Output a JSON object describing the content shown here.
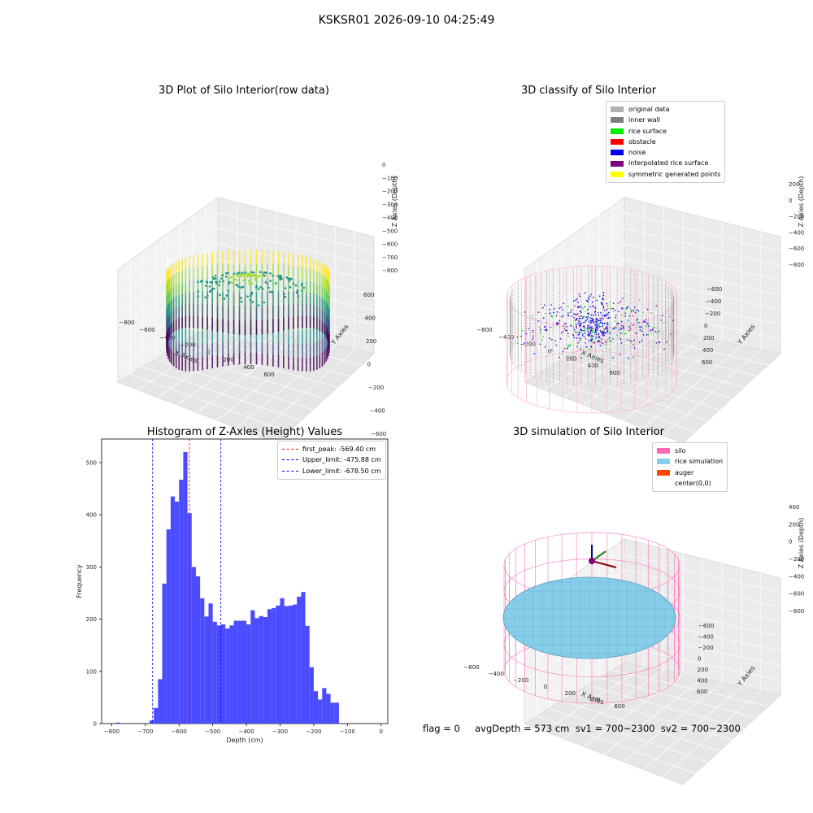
{
  "figure": {
    "title": "KSKSR01 2026-09-10 04:25:49"
  },
  "panels": {
    "raw": {
      "title": "3D Plot of Silo Interior(row data)",
      "xlabel": "X Axies",
      "ylabel": "Y Axies",
      "zlabel": "Z Axies (Depth)",
      "xticks": [
        "−800",
        "−600",
        "−400",
        "−200",
        "0",
        "200",
        "400",
        "600"
      ],
      "yticks": [
        "−600",
        "−400",
        "−200",
        "0",
        "200",
        "400",
        "600"
      ],
      "zticks": [
        "0",
        "−100",
        "−200",
        "−300",
        "−400",
        "−500",
        "−600",
        "−700",
        "−800"
      ]
    },
    "classify": {
      "title": "3D classify of Silo Interior",
      "xlabel": "X Axies",
      "ylabel": "Y Axies",
      "zlabel": "Z Axies (Depth)",
      "xticks": [
        "−600",
        "−400",
        "−200",
        "0",
        "200",
        "400",
        "600"
      ],
      "yticks": [
        "−600",
        "−400",
        "−200",
        "0",
        "200",
        "400",
        "600"
      ],
      "zticks": [
        "200",
        "0",
        "−200",
        "−400",
        "−600",
        "−800"
      ],
      "legend": [
        {
          "label": "original data",
          "color": "#b0b0b0"
        },
        {
          "label": "inner wall",
          "color": "#808080"
        },
        {
          "label": "rice surface",
          "color": "#00ee00"
        },
        {
          "label": "obstacle",
          "color": "#ff0000"
        },
        {
          "label": "noise",
          "color": "#0000ee"
        },
        {
          "label": "interpolated rice surface",
          "color": "#800080"
        },
        {
          "label": "symmetric generated points",
          "color": "#ffff00"
        }
      ]
    },
    "simulation": {
      "title": "3D simulation of Silo Interior",
      "xlabel": "X Axies",
      "ylabel": "Y Axies",
      "zlabel": "Z Axies (Depth)",
      "xticks": [
        "−600",
        "−400",
        "−200",
        "0",
        "200",
        "400",
        "600"
      ],
      "yticks": [
        "−600",
        "−400",
        "−200",
        "0",
        "200",
        "400",
        "600"
      ],
      "zticks": [
        "400",
        "200",
        "0",
        "−200",
        "−400",
        "−600",
        "−800"
      ],
      "legend": [
        {
          "label": "silo",
          "color": "#ff69b4"
        },
        {
          "label": "rice simulation",
          "color": "#87ceeb"
        },
        {
          "label": "auger",
          "color": "#ff4500"
        },
        {
          "label": "center(0,0)",
          "color": ""
        }
      ]
    }
  },
  "status": {
    "text": "flag = 0     avgDepth = 573 cm  sv1 = 700~2300  sv2 = 700~2300"
  },
  "chart_data": [
    {
      "type": "bar",
      "title": "Histogram of Z-Axies (Height) Values",
      "xlabel": "Depth (cm)",
      "ylabel": "Frequency",
      "xlim": [
        -830,
        20
      ],
      "ylim": [
        0,
        545
      ],
      "xticks": [
        -800,
        -700,
        -600,
        -500,
        -400,
        -300,
        -200,
        -100,
        0
      ],
      "yticks": [
        0,
        100,
        200,
        300,
        400,
        500
      ],
      "bin_width": 12.5,
      "bins_start": [
        -787.5,
        -687.5,
        -675,
        -662.5,
        -650,
        -637.5,
        -625,
        -612.5,
        -600,
        -587.5,
        -575,
        -562.5,
        -550,
        -537.5,
        -525,
        -512.5,
        -500,
        -487.5,
        -475,
        -462.5,
        -450,
        -437.5,
        -425,
        -412.5,
        -400,
        -387.5,
        -375,
        -362.5,
        -350,
        -337.5,
        -325,
        -312.5,
        -300,
        -287.5,
        -275,
        -262.5,
        -250,
        -237.5,
        -225,
        -212.5,
        -200,
        -187.5,
        -175,
        -162.5,
        -150,
        -137.5,
        -125,
        -112.5,
        -100,
        -87.5,
        -75,
        -62.5,
        -50,
        -37.5,
        -25,
        -12.5
      ],
      "values": [
        2,
        6,
        30,
        85,
        268,
        372,
        435,
        425,
        467,
        520,
        403,
        300,
        282,
        240,
        205,
        230,
        195,
        188,
        190,
        182,
        188,
        197,
        197,
        197,
        190,
        217,
        202,
        206,
        204,
        219,
        221,
        226,
        240,
        225,
        226,
        228,
        243,
        252,
        187,
        108,
        62,
        46,
        68,
        57,
        40,
        40,
        0,
        0,
        0,
        0,
        0,
        0,
        0,
        0,
        0,
        0
      ],
      "series_color": "#4b4bff",
      "vlines": [
        {
          "label": "first_peak: -569.40 cm",
          "x": -569.4,
          "color": "#ff0000"
        },
        {
          "label": "Upper_limit: -475.88 cm",
          "x": -475.88,
          "color": "#0000ff"
        },
        {
          "label": "Lower_limit: -678.50 cm",
          "x": -678.5,
          "color": "#0000ff"
        }
      ]
    }
  ]
}
